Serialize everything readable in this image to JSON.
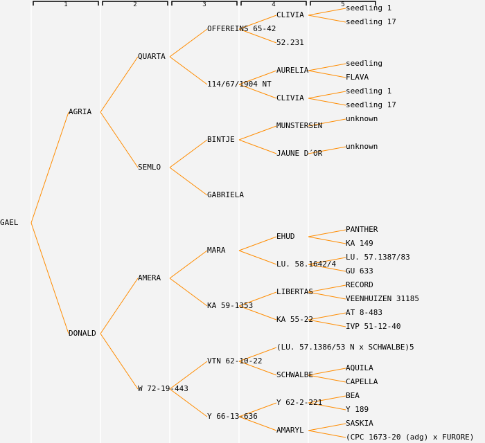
{
  "columns": [
    "1",
    "2",
    "3",
    "4",
    "5"
  ],
  "colors": {
    "edge": "#ff8c00",
    "text": "#000000",
    "background": "#f3f3f3"
  },
  "tree": {
    "name": "GAEL",
    "children": [
      {
        "name": "AGRIA",
        "children": [
          {
            "name": "QUARTA",
            "children": [
              {
                "name": "OFFEREINS 65-42",
                "children": [
                  {
                    "name": "CLIVIA",
                    "children": [
                      {
                        "name": "seedling 1"
                      },
                      {
                        "name": "seedling 17"
                      }
                    ]
                  },
                  {
                    "name": "52.231"
                  }
                ]
              },
              {
                "name": "114/67/1904 NT",
                "children": [
                  {
                    "name": "AURELIA",
                    "children": [
                      {
                        "name": "seedling"
                      },
                      {
                        "name": "FLAVA"
                      }
                    ]
                  },
                  {
                    "name": "CLIVIA",
                    "children": [
                      {
                        "name": "seedling 1"
                      },
                      {
                        "name": "seedling 17"
                      }
                    ]
                  }
                ]
              }
            ]
          },
          {
            "name": "SEMLO",
            "children": [
              {
                "name": "BINTJE",
                "children": [
                  {
                    "name": "MUNSTERSEN",
                    "children": [
                      {
                        "name": "unknown"
                      },
                      null
                    ]
                  },
                  {
                    "name": "JAUNE D´OR",
                    "children": [
                      {
                        "name": "unknown"
                      },
                      null
                    ]
                  }
                ]
              },
              {
                "name": "GABRIELA"
              }
            ]
          }
        ]
      },
      {
        "name": "DONALD",
        "children": [
          {
            "name": "AMERA",
            "children": [
              {
                "name": "MARA",
                "children": [
                  {
                    "name": "EHUD",
                    "children": [
                      {
                        "name": "PANTHER"
                      },
                      {
                        "name": "KA 149"
                      }
                    ]
                  },
                  {
                    "name": "LU. 58.1642/4",
                    "children": [
                      {
                        "name": "LU. 57.1387/83"
                      },
                      {
                        "name": "GU 633"
                      }
                    ]
                  }
                ]
              },
              {
                "name": "KA 59-1353",
                "children": [
                  {
                    "name": "LIBERTAS",
                    "children": [
                      {
                        "name": "RECORD"
                      },
                      {
                        "name": "VEENHUIZEN 31185"
                      }
                    ]
                  },
                  {
                    "name": "KA 55-22",
                    "children": [
                      {
                        "name": "AT 8-483"
                      },
                      {
                        "name": "IVP 51-12-40"
                      }
                    ]
                  }
                ]
              }
            ]
          },
          {
            "name": "W 72-19-443",
            "children": [
              {
                "name": "VTN 62-10-22",
                "children": [
                  {
                    "name": "(LU. 57.1386/53 N x SCHWALBE)5"
                  },
                  {
                    "name": "SCHWALBE",
                    "children": [
                      {
                        "name": "AQUILA"
                      },
                      {
                        "name": "CAPELLA"
                      }
                    ]
                  }
                ]
              },
              {
                "name": "Y 66-13-636",
                "children": [
                  {
                    "name": "Y 62-2-221",
                    "children": [
                      {
                        "name": "BEA"
                      },
                      {
                        "name": "Y 189"
                      }
                    ]
                  },
                  {
                    "name": "AMARYL",
                    "children": [
                      {
                        "name": "SASKIA"
                      },
                      {
                        "name": "(CPC 1673-20 (adg) x FURORE)"
                      }
                    ]
                  }
                ]
              }
            ]
          }
        ]
      }
    ]
  }
}
